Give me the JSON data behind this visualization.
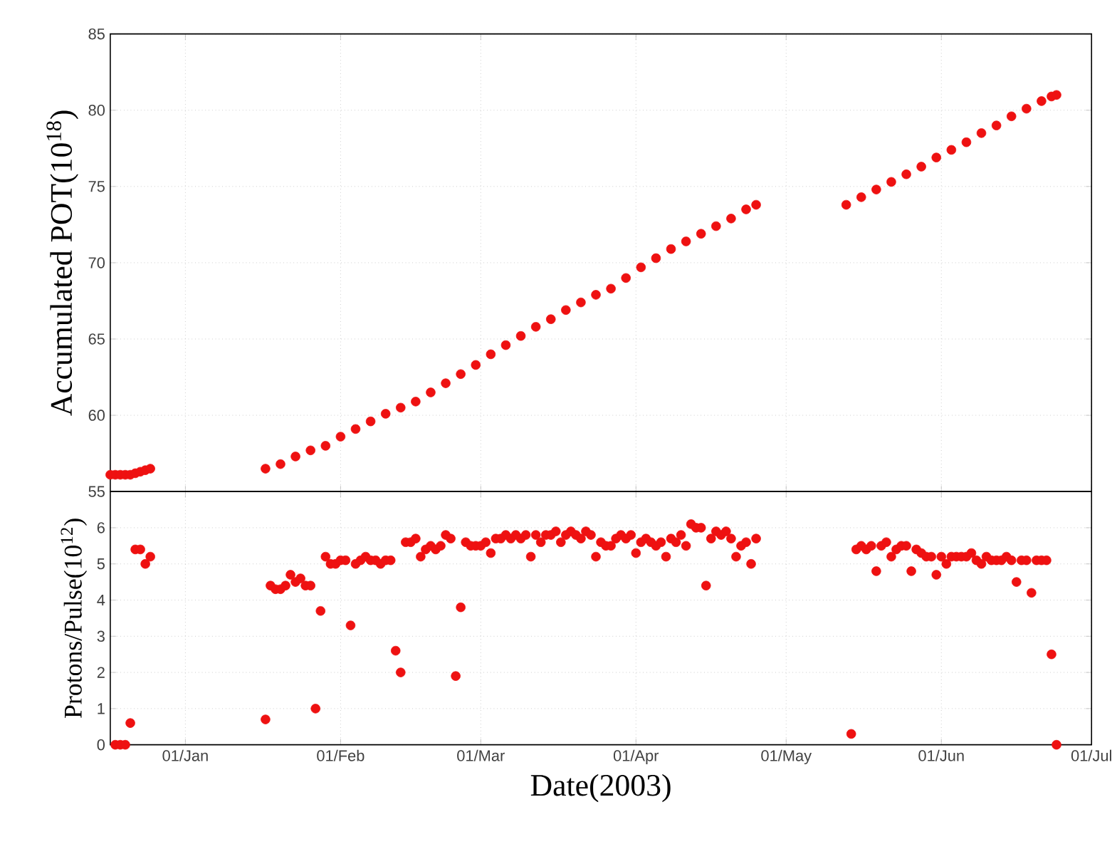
{
  "chart_data": [
    {
      "type": "scatter",
      "ylabel": "Accumulated POT(10$^{18}$)",
      "xlim": [
        "2002-12-17",
        "2003-07-01"
      ],
      "xticks": [
        {
          "value": "2003-01-01",
          "label": null
        },
        {
          "value": "2003-02-01",
          "label": null
        },
        {
          "value": "2003-03-01",
          "label": null
        },
        {
          "value": "2003-04-01",
          "label": null
        },
        {
          "value": "2003-05-01",
          "label": null
        },
        {
          "value": "2003-06-01",
          "label": null
        },
        {
          "value": "2003-07-01",
          "label": null
        }
      ],
      "ylim": [
        55,
        85
      ],
      "yticks": [
        55,
        60,
        65,
        70,
        75,
        80,
        85
      ],
      "tick_labels": "y",
      "grid": true,
      "series": [
        {
          "color": "#ee1111",
          "x": [
            "2002-12-17",
            "2002-12-18",
            "2002-12-19",
            "2002-12-20",
            "2002-12-21",
            "2002-12-22",
            "2002-12-23",
            "2002-12-24",
            "2002-12-25",
            "2003-01-17",
            "2003-01-20",
            "2003-01-23",
            "2003-01-26",
            "2003-01-29",
            "2003-02-01",
            "2003-02-04",
            "2003-02-07",
            "2003-02-10",
            "2003-02-13",
            "2003-02-16",
            "2003-02-19",
            "2003-02-22",
            "2003-02-25",
            "2003-02-28",
            "2003-03-03",
            "2003-03-06",
            "2003-03-09",
            "2003-03-12",
            "2003-03-15",
            "2003-03-18",
            "2003-03-21",
            "2003-03-24",
            "2003-03-27",
            "2003-03-30",
            "2003-04-02",
            "2003-04-05",
            "2003-04-08",
            "2003-04-11",
            "2003-04-14",
            "2003-04-17",
            "2003-04-20",
            "2003-04-23",
            "2003-04-25",
            "2003-05-13",
            "2003-05-16",
            "2003-05-19",
            "2003-05-22",
            "2003-05-25",
            "2003-05-28",
            "2003-05-31",
            "2003-06-03",
            "2003-06-06",
            "2003-06-09",
            "2003-06-12",
            "2003-06-15",
            "2003-06-18",
            "2003-06-21",
            "2003-06-23",
            "2003-06-24"
          ],
          "values": [
            56.1,
            56.1,
            56.1,
            56.1,
            56.1,
            56.2,
            56.3,
            56.4,
            56.5,
            56.5,
            56.8,
            57.3,
            57.7,
            58.0,
            58.6,
            59.1,
            59.6,
            60.1,
            60.5,
            60.9,
            61.5,
            62.1,
            62.7,
            63.3,
            64.0,
            64.6,
            65.2,
            65.8,
            66.3,
            66.9,
            67.4,
            67.9,
            68.3,
            69.0,
            69.7,
            70.3,
            70.9,
            71.4,
            71.9,
            72.4,
            72.9,
            73.5,
            73.8,
            73.8,
            74.3,
            74.8,
            75.3,
            75.8,
            76.3,
            76.9,
            77.4,
            77.9,
            78.5,
            79.0,
            79.6,
            80.1,
            80.6,
            80.9,
            81.0
          ]
        }
      ]
    },
    {
      "type": "scatter",
      "xlabel": "Date(2003)",
      "ylabel": "Protons/Pulse(10$^{12}$)",
      "xlim": [
        "2002-12-17",
        "2003-07-01"
      ],
      "xticks": [
        {
          "value": "2003-01-01",
          "label": "01/Jan"
        },
        {
          "value": "2003-02-01",
          "label": "01/Feb"
        },
        {
          "value": "2003-03-01",
          "label": "01/Mar"
        },
        {
          "value": "2003-04-01",
          "label": "01/Apr"
        },
        {
          "value": "2003-05-01",
          "label": "01/May"
        },
        {
          "value": "2003-06-01",
          "label": "01/Jun"
        },
        {
          "value": "2003-07-01",
          "label": "01/Jul"
        }
      ],
      "ylim": [
        0,
        7
      ],
      "yticks": [
        0,
        1,
        2,
        3,
        4,
        5,
        6,
        {
          "value": 7,
          "label": null
        }
      ],
      "grid": true,
      "series": [
        {
          "color": "#ee1111",
          "x": [
            "2002-12-18",
            "2002-12-19",
            "2002-12-20",
            "2002-12-21",
            "2002-12-22",
            "2002-12-23",
            "2002-12-24",
            "2002-12-25",
            "2003-01-17",
            "2003-01-18",
            "2003-01-19",
            "2003-01-20",
            "2003-01-21",
            "2003-01-22",
            "2003-01-23",
            "2003-01-24",
            "2003-01-25",
            "2003-01-26",
            "2003-01-27",
            "2003-01-28",
            "2003-01-29",
            "2003-01-30",
            "2003-01-31",
            "2003-02-01",
            "2003-02-02",
            "2003-02-03",
            "2003-02-04",
            "2003-02-05",
            "2003-02-06",
            "2003-02-07",
            "2003-02-08",
            "2003-02-09",
            "2003-02-10",
            "2003-02-11",
            "2003-02-12",
            "2003-02-13",
            "2003-02-14",
            "2003-02-15",
            "2003-02-16",
            "2003-02-17",
            "2003-02-18",
            "2003-02-19",
            "2003-02-20",
            "2003-02-21",
            "2003-02-22",
            "2003-02-23",
            "2003-02-24",
            "2003-02-25",
            "2003-02-26",
            "2003-02-27",
            "2003-02-28",
            "2003-03-01",
            "2003-03-02",
            "2003-03-03",
            "2003-03-04",
            "2003-03-05",
            "2003-03-06",
            "2003-03-07",
            "2003-03-08",
            "2003-03-09",
            "2003-03-10",
            "2003-03-11",
            "2003-03-12",
            "2003-03-13",
            "2003-03-14",
            "2003-03-15",
            "2003-03-16",
            "2003-03-17",
            "2003-03-18",
            "2003-03-19",
            "2003-03-20",
            "2003-03-21",
            "2003-03-22",
            "2003-03-23",
            "2003-03-24",
            "2003-03-25",
            "2003-03-26",
            "2003-03-27",
            "2003-03-28",
            "2003-03-29",
            "2003-03-30",
            "2003-03-31",
            "2003-04-01",
            "2003-04-02",
            "2003-04-03",
            "2003-04-04",
            "2003-04-05",
            "2003-04-06",
            "2003-04-07",
            "2003-04-08",
            "2003-04-09",
            "2003-04-10",
            "2003-04-11",
            "2003-04-12",
            "2003-04-13",
            "2003-04-14",
            "2003-04-15",
            "2003-04-16",
            "2003-04-17",
            "2003-04-18",
            "2003-04-19",
            "2003-04-20",
            "2003-04-21",
            "2003-04-22",
            "2003-04-23",
            "2003-04-24",
            "2003-04-25",
            "2003-05-14",
            "2003-05-15",
            "2003-05-16",
            "2003-05-17",
            "2003-05-18",
            "2003-05-19",
            "2003-05-20",
            "2003-05-21",
            "2003-05-22",
            "2003-05-23",
            "2003-05-24",
            "2003-05-25",
            "2003-05-26",
            "2003-05-27",
            "2003-05-28",
            "2003-05-29",
            "2003-05-30",
            "2003-05-31",
            "2003-06-01",
            "2003-06-02",
            "2003-06-03",
            "2003-06-04",
            "2003-06-05",
            "2003-06-06",
            "2003-06-07",
            "2003-06-08",
            "2003-06-09",
            "2003-06-10",
            "2003-06-11",
            "2003-06-12",
            "2003-06-13",
            "2003-06-14",
            "2003-06-15",
            "2003-06-16",
            "2003-06-17",
            "2003-06-18",
            "2003-06-19",
            "2003-06-20",
            "2003-06-21",
            "2003-06-22",
            "2003-06-23",
            "2003-06-24"
          ],
          "values": [
            0,
            0,
            0,
            0.6,
            5.4,
            5.4,
            5.0,
            5.2,
            0.7,
            4.4,
            4.3,
            4.3,
            4.4,
            4.7,
            4.5,
            4.6,
            4.4,
            4.4,
            1.0,
            3.7,
            5.2,
            5.0,
            5.0,
            5.1,
            5.1,
            3.3,
            5.0,
            5.1,
            5.2,
            5.1,
            5.1,
            5.0,
            5.1,
            5.1,
            2.6,
            2.0,
            5.6,
            5.6,
            5.7,
            5.2,
            5.4,
            5.5,
            5.4,
            5.5,
            5.8,
            5.7,
            1.9,
            3.8,
            5.6,
            5.5,
            5.5,
            5.5,
            5.6,
            5.3,
            5.7,
            5.7,
            5.8,
            5.7,
            5.8,
            5.7,
            5.8,
            5.2,
            5.8,
            5.6,
            5.8,
            5.8,
            5.9,
            5.6,
            5.8,
            5.9,
            5.8,
            5.7,
            5.9,
            5.8,
            5.2,
            5.6,
            5.5,
            5.5,
            5.7,
            5.8,
            5.7,
            5.8,
            5.3,
            5.6,
            5.7,
            5.6,
            5.5,
            5.6,
            5.2,
            5.7,
            5.6,
            5.8,
            5.5,
            6.1,
            6.0,
            6.0,
            4.4,
            5.7,
            5.9,
            5.8,
            5.9,
            5.7,
            5.2,
            5.5,
            5.6,
            5.0,
            5.7,
            0.3,
            5.4,
            5.5,
            5.4,
            5.5,
            4.8,
            5.5,
            5.6,
            5.2,
            5.4,
            5.5,
            5.5,
            4.8,
            5.4,
            5.3,
            5.2,
            5.2,
            4.7,
            5.2,
            5.0,
            5.2,
            5.2,
            5.2,
            5.2,
            5.3,
            5.1,
            5.0,
            5.2,
            5.1,
            5.1,
            5.1,
            5.2,
            5.1,
            4.5,
            5.1,
            5.1,
            4.2,
            5.1,
            5.1,
            5.1,
            2.5,
            0
          ]
        }
      ]
    }
  ]
}
